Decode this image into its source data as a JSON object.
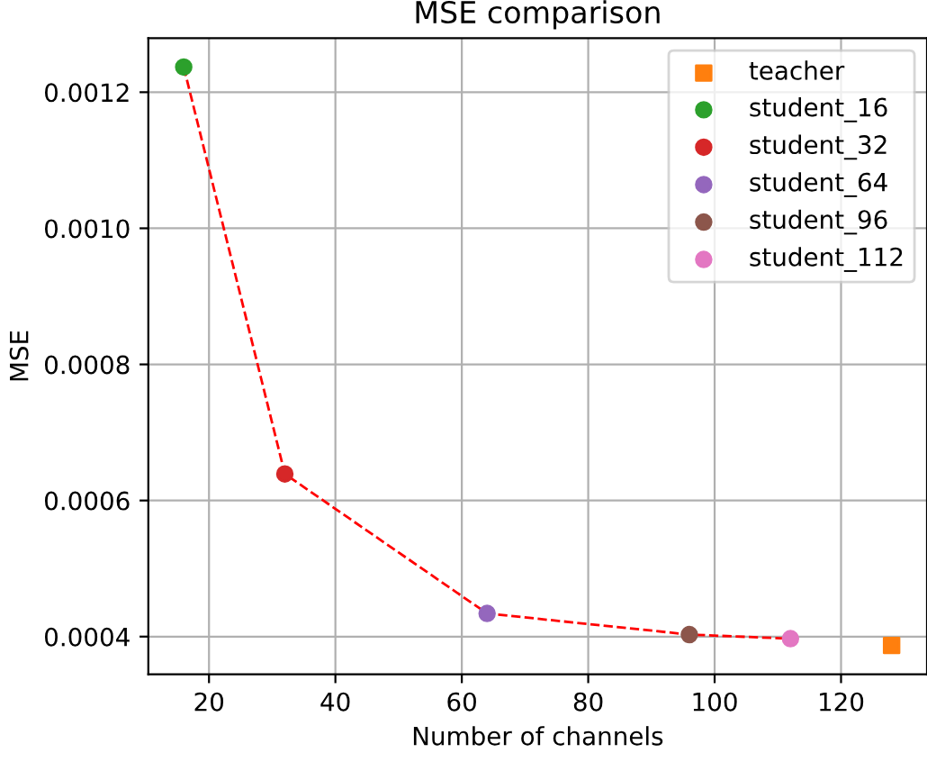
{
  "chart_data": {
    "type": "scatter",
    "title": "MSE comparison",
    "xlabel": "Number of channels",
    "ylabel": "MSE",
    "series": [
      {
        "type": "line",
        "color": "#ff0000",
        "line_style": "dashed",
        "marker": "none",
        "x": [
          16,
          32,
          64,
          96,
          112
        ],
        "values": [
          0.001237,
          0.000639,
          0.000434,
          0.000403,
          0.000397
        ]
      },
      {
        "name": "teacher",
        "color": "#ff7f0e",
        "marker": "square",
        "x": [
          128
        ],
        "values": [
          0.000387
        ]
      },
      {
        "name": "student_16",
        "color": "#2ca02c",
        "marker": "circle",
        "x": [
          16
        ],
        "values": [
          0.001237
        ]
      },
      {
        "name": "student_32",
        "color": "#d62728",
        "marker": "circle",
        "x": [
          32
        ],
        "values": [
          0.000639
        ]
      },
      {
        "name": "student_64",
        "color": "#9467bd",
        "marker": "circle",
        "x": [
          64
        ],
        "values": [
          0.000434
        ]
      },
      {
        "name": "student_96",
        "color": "#8c564b",
        "marker": "circle",
        "x": [
          96
        ],
        "values": [
          0.000403
        ]
      },
      {
        "name": "student_112",
        "color": "#e377c2",
        "marker": "circle",
        "x": [
          112
        ],
        "values": [
          0.000397
        ]
      }
    ],
    "xlim": [
      10.4,
      133.6
    ],
    "xticks": [
      20,
      40,
      60,
      80,
      100,
      120
    ],
    "ylim": [
      0.0003445,
      0.0012795
    ],
    "yticks": [
      {
        "value": 0.0004,
        "label": "0.0004"
      },
      {
        "value": 0.0006,
        "label": "0.0006"
      },
      {
        "value": 0.0008,
        "label": "0.0008"
      },
      {
        "value": 0.001,
        "label": "0.0010"
      },
      {
        "value": 0.0012,
        "label": "0.0012"
      }
    ],
    "grid": true,
    "legend": "top right"
  }
}
